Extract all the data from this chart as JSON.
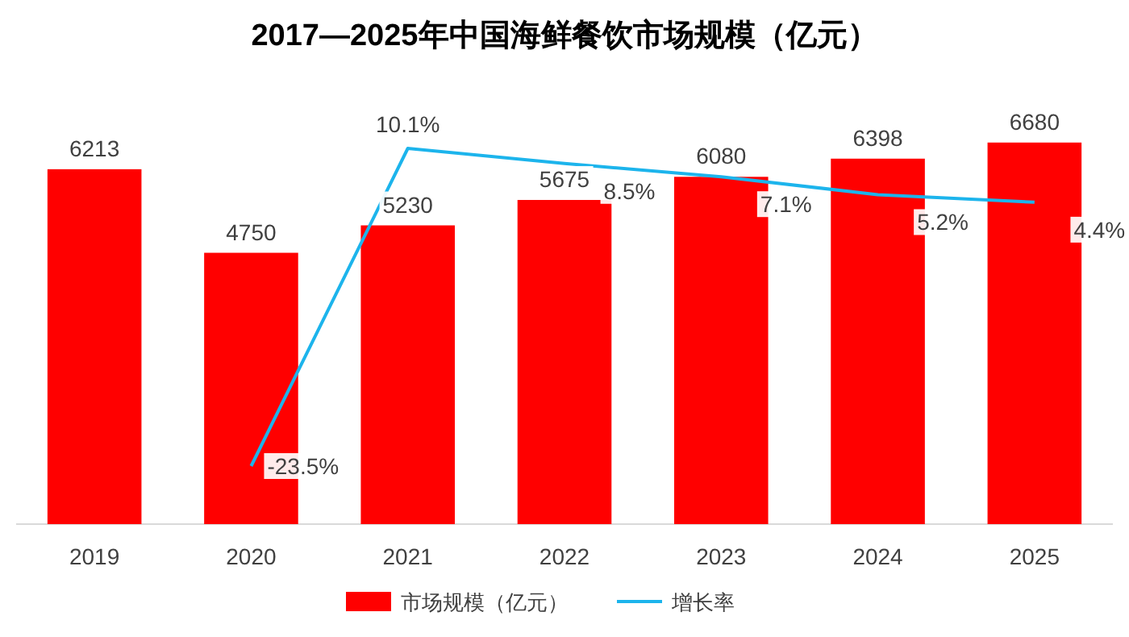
{
  "chart_data": {
    "type": "bar",
    "title": "2017—2025年中国海鲜餐饮市场规模（亿元）",
    "categories": [
      "2019",
      "2020",
      "2021",
      "2022",
      "2023",
      "2024",
      "2025"
    ],
    "series": [
      {
        "name": "市场规模（亿元）",
        "color": "#ff0000",
        "values": [
          6213,
          4750,
          5230,
          5675,
          6080,
          6398,
          6680
        ],
        "value_labels": [
          "6213",
          "4750",
          "5230",
          "5675",
          "6080",
          "6398",
          "6680"
        ]
      },
      {
        "name": "增长率",
        "type": "line",
        "axis": "y2",
        "color": "#1cb4ec",
        "values": [
          null,
          -23.5,
          10.1,
          8.5,
          7.1,
          5.2,
          4.4
        ],
        "value_labels": [
          null,
          "-23.5%",
          "10.1%",
          "8.5%",
          "7.1%",
          "5.2%",
          "4.4%"
        ]
      }
    ],
    "legend": "bottom",
    "grid": false,
    "marker": "none",
    "line_style": "solid"
  }
}
